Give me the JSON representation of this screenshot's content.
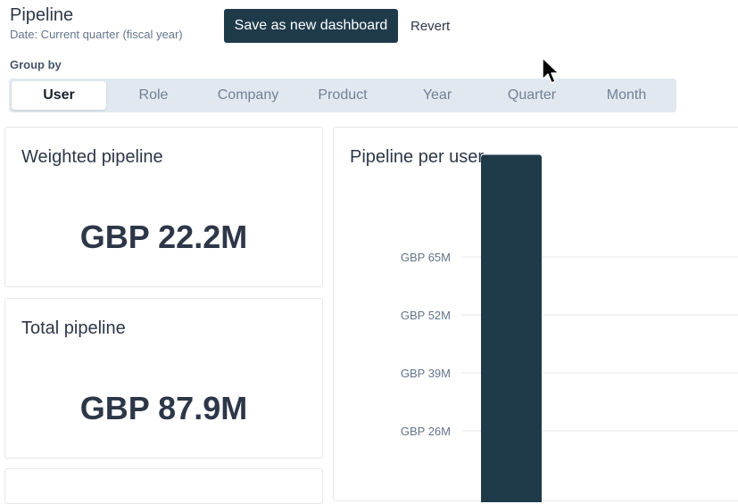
{
  "header": {
    "title": "Pipeline",
    "subtitle": "Date: Current quarter (fiscal year)",
    "save_label": "Save as new dashboard",
    "revert_label": "Revert"
  },
  "group_by": {
    "label": "Group by",
    "options": [
      "User",
      "Role",
      "Company",
      "Product",
      "Year",
      "Quarter",
      "Month"
    ],
    "selected": "User"
  },
  "cards": {
    "weighted": {
      "title": "Weighted pipeline",
      "value": "GBP 22.2M"
    },
    "total": {
      "title": "Total pipeline",
      "value": "GBP 87.9M"
    }
  },
  "chart_title": "Pipeline per user",
  "chart_data": {
    "type": "bar",
    "title": "Pipeline per user",
    "y_tick_labels": [
      "GBP 65M",
      "GBP 52M",
      "GBP 39M",
      "GBP 26M"
    ],
    "y_ticks": [
      65,
      52,
      39,
      26
    ],
    "unit": "GBP M",
    "values": [
      87.9
    ],
    "bar_color": "#1f3b4a",
    "grid": true
  },
  "colors": {
    "accent": "#1f3b4a",
    "segment_bg": "#e2e8f0"
  }
}
